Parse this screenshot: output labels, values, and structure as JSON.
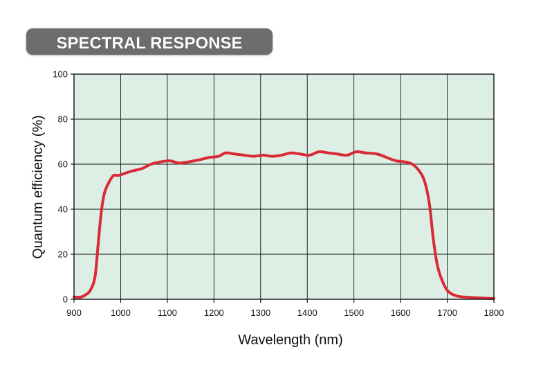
{
  "chart_data": {
    "type": "line",
    "title": "SPECTRAL RESPONSE",
    "xlabel": "Wavelength (nm)",
    "ylabel": "Quantum efficiency (%)",
    "xlim": [
      900,
      1800
    ],
    "ylim": [
      0,
      100
    ],
    "xticks": [
      900,
      1000,
      1100,
      1200,
      1300,
      1400,
      1500,
      1600,
      1700,
      1800
    ],
    "yticks": [
      0,
      20,
      40,
      60,
      80,
      100
    ],
    "grid": true,
    "legend": "none",
    "colors": {
      "plot_background": "#DDEEE5",
      "line": "#D92A36",
      "title_badge": "#6D6D6D",
      "title_text": "#FFFFFF",
      "grid": "#111111"
    },
    "series": [
      {
        "x": [
          900,
          915,
          925,
          935,
          945,
          952,
          958,
          965,
          975,
          985,
          995,
          1010,
          1025,
          1045,
          1065,
          1085,
          1105,
          1125,
          1145,
          1170,
          1190,
          1210,
          1225,
          1245,
          1265,
          1285,
          1305,
          1325,
          1345,
          1365,
          1385,
          1405,
          1425,
          1445,
          1465,
          1485,
          1505,
          1525,
          1550,
          1570,
          1590,
          1610,
          1625,
          1640,
          1652,
          1662,
          1670,
          1678,
          1686,
          1700,
          1720,
          1750,
          1800
        ],
        "y": [
          1,
          1,
          2,
          4,
          10,
          25,
          38,
          47,
          52,
          55,
          55,
          56,
          57,
          58,
          60,
          61,
          61.5,
          60.5,
          61,
          62,
          63,
          63.5,
          65,
          64.5,
          64,
          63.5,
          64,
          63.5,
          64,
          65,
          64.5,
          64,
          65.5,
          65,
          64.5,
          64,
          65.5,
          65,
          64.5,
          63,
          61.5,
          61,
          60,
          57,
          52,
          42,
          27,
          16,
          10,
          4,
          1.5,
          0.8,
          0.3
        ]
      }
    ]
  }
}
